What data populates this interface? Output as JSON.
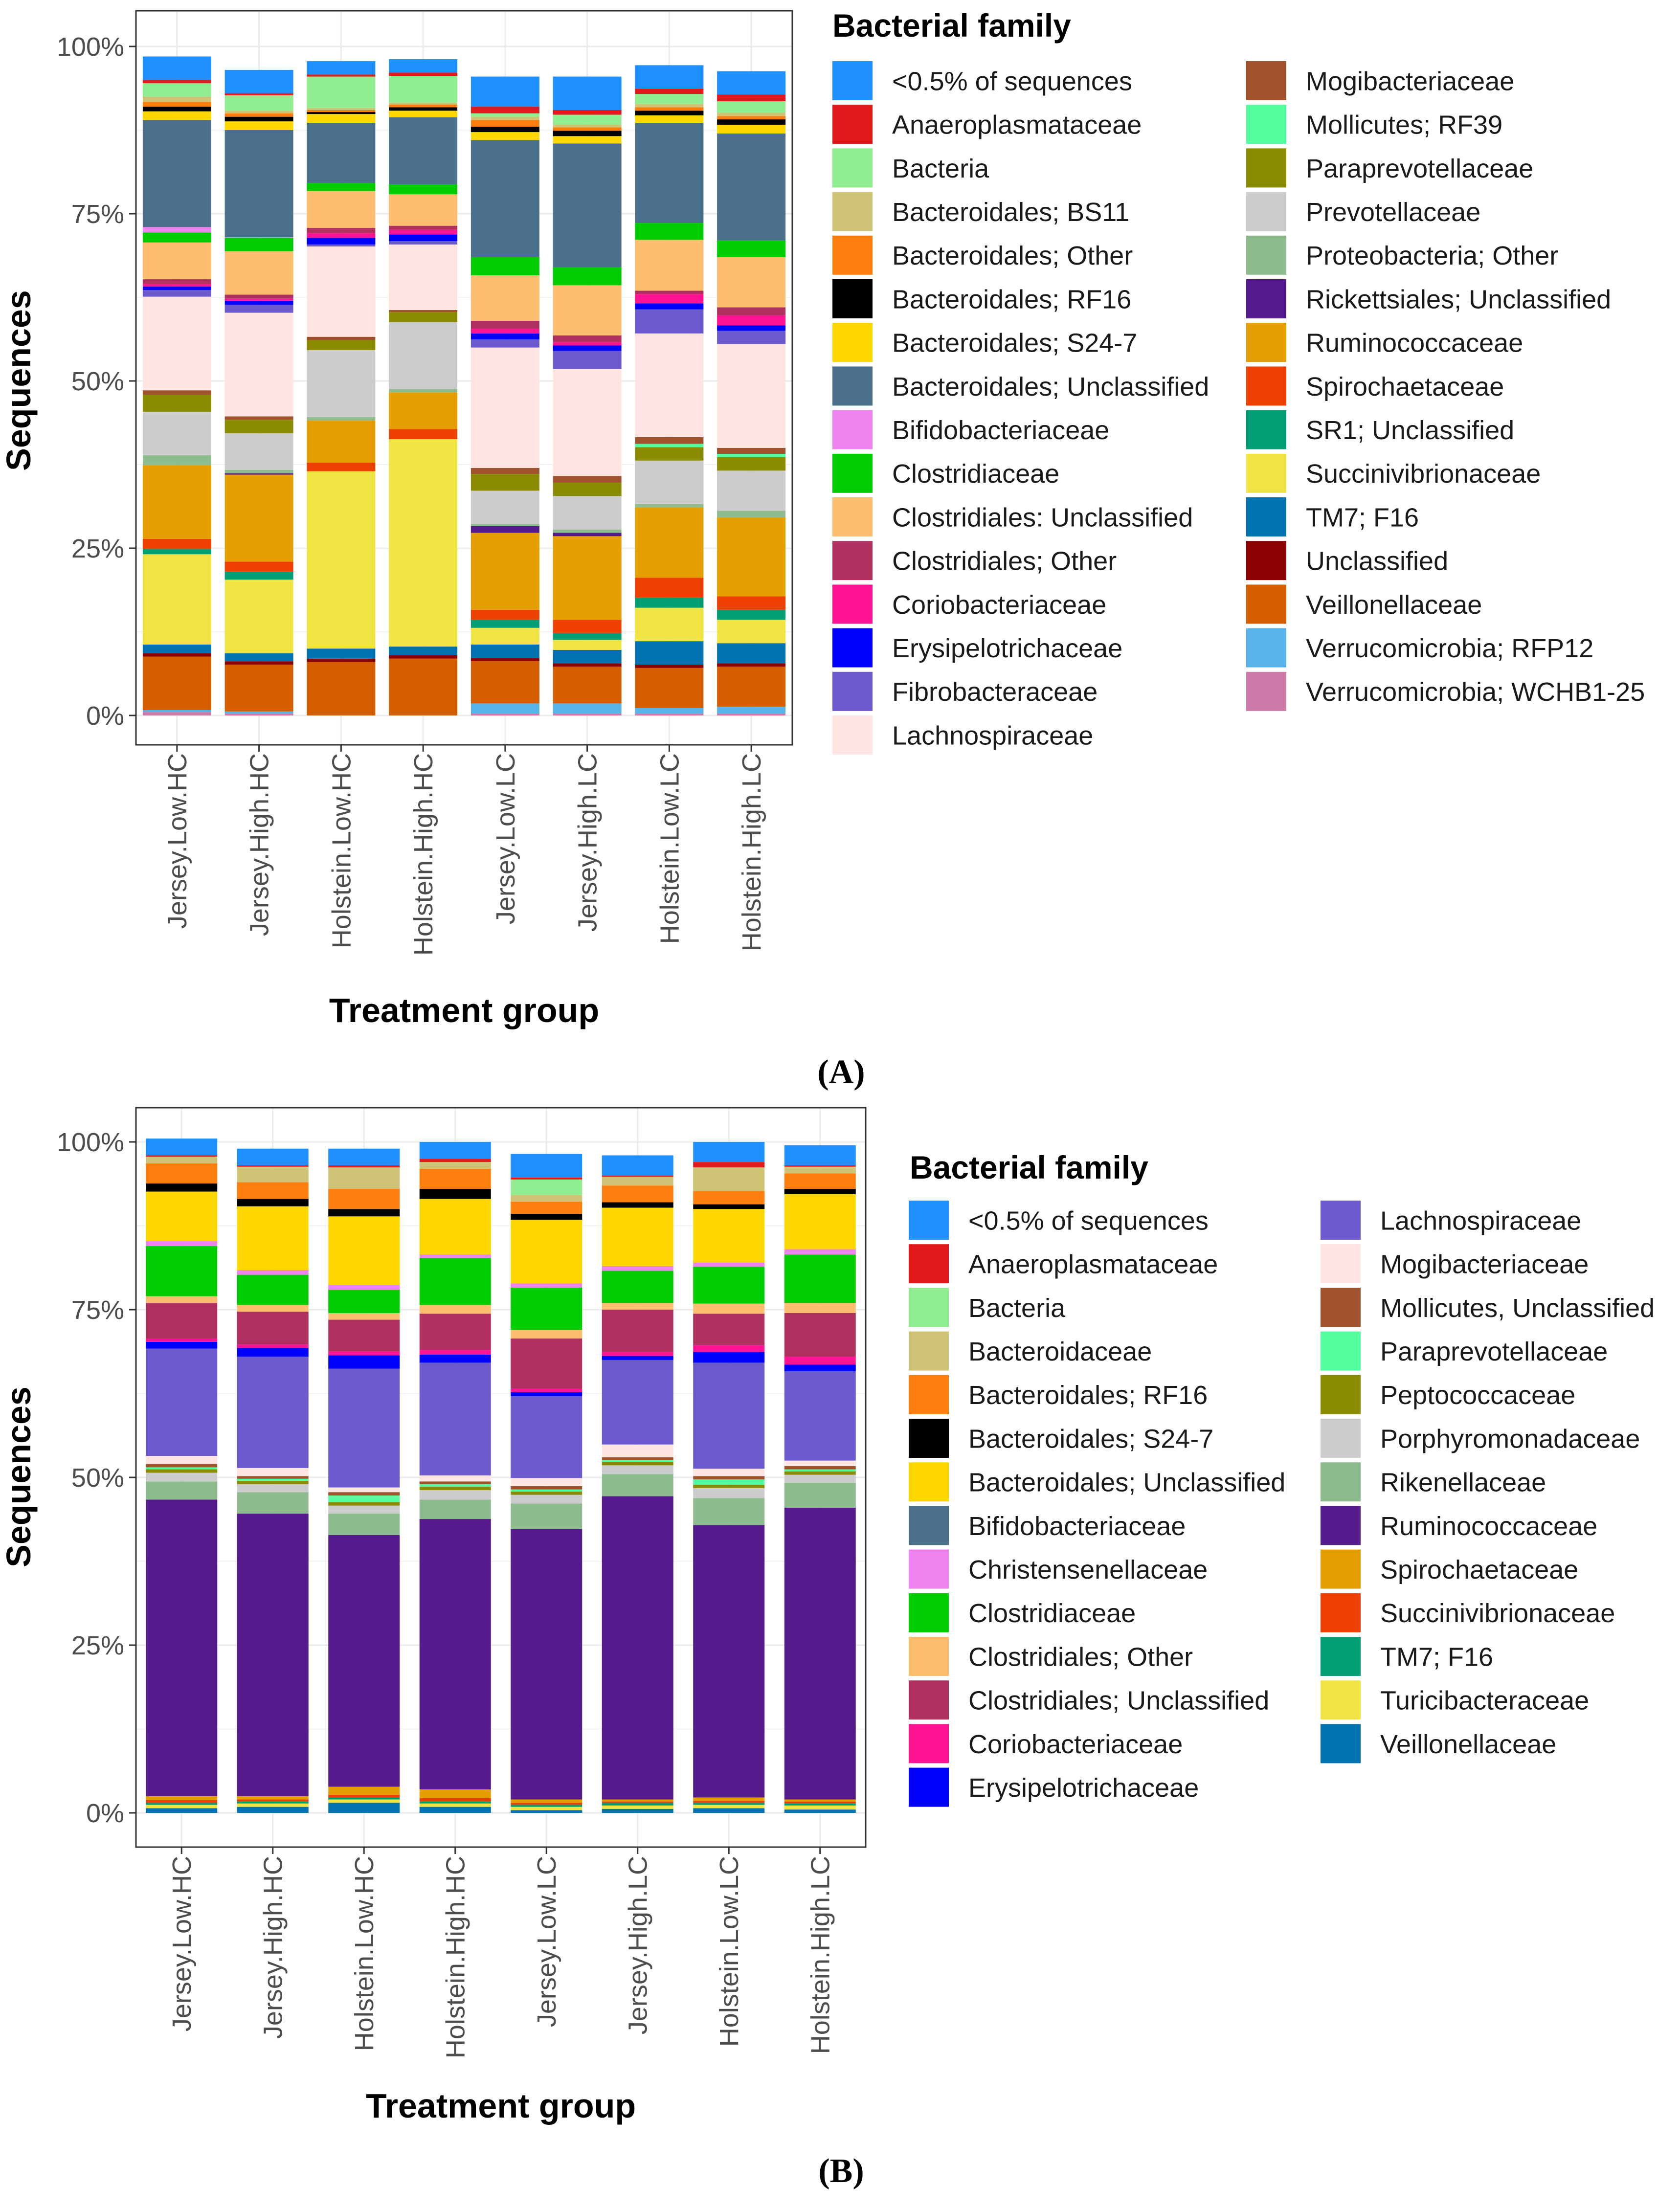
{
  "chart_data": [
    {
      "type": "bar",
      "stacked": true,
      "panel_label": "(A)",
      "xlabel": "Treatment group",
      "ylabel": "Sequences",
      "ylim": [
        0,
        100
      ],
      "ytick_labels": [
        "0%",
        "25%",
        "50%",
        "75%",
        "100%"
      ],
      "categories": [
        "Jersey.Low.HC",
        "Jersey.High.HC",
        "Holstein.Low.HC",
        "Holstein.High.HC",
        "Jersey.Low.LC",
        "Jersey.High.LC",
        "Holstein.Low.LC",
        "Holstein.High.LC"
      ],
      "legend_title": "Bacterial family",
      "legend_position": "right",
      "series": [
        {
          "name": "<0.5% of sequences",
          "color": "#1f90ff",
          "values": [
            3.5,
            3.5,
            2.0,
            2.0,
            4.5,
            5.0,
            3.5,
            3.5
          ]
        },
        {
          "name": "Anaeroplasmataceae",
          "color": "#e31a1c",
          "values": [
            0.5,
            0.3,
            0.3,
            0.5,
            1.0,
            0.7,
            0.8,
            1.0
          ]
        },
        {
          "name": "Bacteria",
          "color": "#90ee90",
          "values": [
            2.0,
            2.3,
            4.7,
            4.0,
            0.5,
            1.5,
            1.5,
            1.7
          ]
        },
        {
          "name": "Bacteroidales; BS11",
          "color": "#cfc376",
          "values": [
            0.8,
            0.4,
            0.3,
            0.3,
            0.5,
            0.4,
            0.5,
            0.5
          ]
        },
        {
          "name": "Bacteroidales; Other",
          "color": "#ff7f0e",
          "values": [
            0.7,
            0.5,
            0.3,
            0.4,
            1.0,
            0.5,
            0.5,
            0.5
          ]
        },
        {
          "name": "Bacteroidales; RF16",
          "color": "#000000",
          "values": [
            0.7,
            0.7,
            0.3,
            0.5,
            0.8,
            0.8,
            0.7,
            0.8
          ]
        },
        {
          "name": "Bacteroidales; S24-7",
          "color": "#ffd700",
          "values": [
            1.3,
            1.3,
            1.3,
            1.0,
            1.2,
            1.1,
            1.1,
            1.3
          ]
        },
        {
          "name": "Bacteroidales; Unclassified",
          "color": "#4a708b",
          "values": [
            16.0,
            16.0,
            9.0,
            10.0,
            17.5,
            18.5,
            15.0,
            16.0
          ]
        },
        {
          "name": "Bifidobacteriaceae",
          "color": "#ee82ee",
          "values": [
            0.8,
            0.1,
            0.0,
            0.0,
            0.0,
            0.0,
            0.0,
            0.0
          ]
        },
        {
          "name": "Clostridiaceae",
          "color": "#00cd00",
          "values": [
            1.5,
            2.0,
            1.2,
            1.5,
            2.7,
            2.7,
            2.5,
            2.5
          ]
        },
        {
          "name": "Clostridiales: Unclassified",
          "color": "#fdbf6f",
          "values": [
            5.5,
            6.5,
            5.5,
            4.7,
            6.8,
            7.5,
            7.6,
            7.5
          ]
        },
        {
          "name": "Clostridiales; Other",
          "color": "#b03060",
          "values": [
            0.7,
            0.6,
            0.8,
            0.6,
            1.2,
            1.0,
            0.5,
            1.2
          ]
        },
        {
          "name": "Coriobacteriaceae",
          "color": "#ff1493",
          "values": [
            0.4,
            0.3,
            0.7,
            0.7,
            0.7,
            0.5,
            1.4,
            1.5
          ]
        },
        {
          "name": "Erysipelotrichaceae",
          "color": "#0000ff",
          "values": [
            0.5,
            0.6,
            1.0,
            1.0,
            0.9,
            0.8,
            0.9,
            0.8
          ]
        },
        {
          "name": "Fibrobacteraceae",
          "color": "#6a5acd",
          "values": [
            1.0,
            1.2,
            0.3,
            0.5,
            1.2,
            2.7,
            3.6,
            2.0
          ]
        },
        {
          "name": "Lachnospiraceae",
          "color": "#ffe4e1",
          "values": [
            14.0,
            15.5,
            13.5,
            9.8,
            18.0,
            16.0,
            15.5,
            15.5
          ]
        },
        {
          "name": "Mogibacteriaceae",
          "color": "#a0522d",
          "values": [
            0.7,
            0.5,
            0.5,
            0.3,
            0.9,
            1.0,
            1.0,
            0.9
          ]
        },
        {
          "name": "Mollicutes; RF39",
          "color": "#54ff9f",
          "values": [
            0.0,
            0.0,
            0.0,
            0.0,
            0.0,
            0.0,
            0.5,
            0.5
          ]
        },
        {
          "name": "Paraprevotellaceae",
          "color": "#8b8b00",
          "values": [
            2.5,
            2.0,
            1.5,
            1.5,
            2.5,
            2.0,
            2.0,
            2.0
          ]
        },
        {
          "name": "Prevotellaceae",
          "color": "#cccccc",
          "values": [
            6.5,
            5.5,
            10.0,
            10.0,
            5.0,
            5.0,
            6.5,
            6.0
          ]
        },
        {
          "name": "Proteobacteria; Other",
          "color": "#8fbc8f",
          "values": [
            1.5,
            0.5,
            0.5,
            0.5,
            0.3,
            0.5,
            0.5,
            1.0
          ]
        },
        {
          "name": "Rickettsiales; Unclassified",
          "color": "#551a8b",
          "values": [
            0.0,
            0.2,
            0.0,
            0.0,
            1.0,
            0.5,
            0.0,
            0.0
          ]
        },
        {
          "name": "Ruminococcaceae",
          "color": "#e69f00",
          "values": [
            11.0,
            13.0,
            6.3,
            5.5,
            11.5,
            12.5,
            10.5,
            11.8
          ]
        },
        {
          "name": "Spirochaetaceae",
          "color": "#ee4000",
          "values": [
            1.5,
            1.5,
            1.3,
            1.5,
            1.5,
            2.0,
            3.0,
            2.0
          ]
        },
        {
          "name": "SR1; Unclassified",
          "color": "#009e73",
          "values": [
            0.8,
            1.2,
            0.0,
            0.0,
            1.2,
            1.0,
            1.5,
            1.5
          ]
        },
        {
          "name": "Succinivibrionaceae",
          "color": "#f0e442",
          "values": [
            13.5,
            11.0,
            26.5,
            31.0,
            2.5,
            1.5,
            5.0,
            3.5
          ]
        },
        {
          "name": "TM7; F16",
          "color": "#0072b2",
          "values": [
            1.3,
            1.2,
            1.5,
            1.3,
            2.0,
            2.0,
            3.5,
            3.0
          ]
        },
        {
          "name": "Unclassified",
          "color": "#8b0000",
          "values": [
            0.5,
            0.5,
            0.5,
            0.5,
            0.5,
            0.5,
            0.5,
            0.5
          ]
        },
        {
          "name": "Veillonellaceae",
          "color": "#d55e00",
          "values": [
            8.0,
            7.0,
            8.0,
            8.5,
            6.3,
            5.5,
            6.0,
            6.0
          ]
        },
        {
          "name": "Verrucomicrobia; RFP12",
          "color": "#56b4e9",
          "values": [
            0.3,
            0.3,
            0.0,
            0.0,
            1.5,
            1.5,
            0.8,
            1.0
          ]
        },
        {
          "name": "Verrucomicrobia; WCHB1-25",
          "color": "#cc79a7",
          "values": [
            0.5,
            0.3,
            0.0,
            0.0,
            0.3,
            0.3,
            0.3,
            0.3
          ]
        }
      ]
    },
    {
      "type": "bar",
      "stacked": true,
      "panel_label": "(B)",
      "xlabel": "Treatment group",
      "ylabel": "Sequences",
      "ylim": [
        0,
        100
      ],
      "ytick_labels": [
        "0%",
        "25%",
        "50%",
        "75%",
        "100%"
      ],
      "categories": [
        "Jersey.Low.HC",
        "Jersey.High.HC",
        "Holstein.Low.HC",
        "Holstein.High.HC",
        "Jersey.Low.LC",
        "Jersey.High.LC",
        "Holstein.Low.LC",
        "Holstein.High.LC"
      ],
      "legend_title": "Bacterial family",
      "legend_position": "right",
      "series": [
        {
          "name": "<0.5% of sequences",
          "color": "#1f90ff",
          "values": [
            2.5,
            2.5,
            2.5,
            2.5,
            3.5,
            3.0,
            3.0,
            3.0
          ]
        },
        {
          "name": "Anaeroplasmataceae",
          "color": "#e31a1c",
          "values": [
            0.2,
            0.2,
            0.3,
            0.5,
            0.3,
            0.2,
            0.8,
            0.2
          ]
        },
        {
          "name": "Bacteria",
          "color": "#90ee90",
          "values": [
            0.0,
            0.0,
            0.0,
            0.0,
            2.3,
            0.0,
            0.0,
            0.0
          ]
        },
        {
          "name": "Bacteroidaceae",
          "color": "#cfc376",
          "values": [
            1.0,
            2.3,
            3.2,
            1.0,
            1.0,
            1.3,
            3.5,
            1.0
          ]
        },
        {
          "name": "Bacteroidales; RF16",
          "color": "#ff7f0e",
          "values": [
            3.0,
            2.5,
            3.0,
            3.0,
            1.8,
            2.5,
            2.0,
            2.3
          ]
        },
        {
          "name": "Bacteroidales; S24-7",
          "color": "#000000",
          "values": [
            1.2,
            1.1,
            1.1,
            1.5,
            0.9,
            0.8,
            0.7,
            0.8
          ]
        },
        {
          "name": "Bacteroidales; Unclassified",
          "color": "#ffd700",
          "values": [
            7.4,
            9.5,
            10.2,
            8.3,
            9.5,
            8.7,
            8.0,
            8.2
          ]
        },
        {
          "name": "Bifidobacteriaceae",
          "color": "#4a708b",
          "values": [
            0.0,
            0.0,
            0.0,
            0.0,
            0.0,
            0.0,
            0.0,
            0.0
          ]
        },
        {
          "name": "Christensenellaceae",
          "color": "#ee82ee",
          "values": [
            0.7,
            0.7,
            0.7,
            0.5,
            0.6,
            0.7,
            0.6,
            0.8
          ]
        },
        {
          "name": "Clostridiaceae",
          "color": "#00cd00",
          "values": [
            7.5,
            4.5,
            3.5,
            7.0,
            6.3,
            4.8,
            5.5,
            7.2
          ]
        },
        {
          "name": "Clostridiales; Other",
          "color": "#fdbf6f",
          "values": [
            1.0,
            1.0,
            1.0,
            1.3,
            1.3,
            1.0,
            1.5,
            1.5
          ]
        },
        {
          "name": "Clostridiales; Unclassified",
          "color": "#b03060",
          "values": [
            5.3,
            4.9,
            4.7,
            5.4,
            7.5,
            6.3,
            4.7,
            6.5
          ]
        },
        {
          "name": "Coriobacteriaceae",
          "color": "#ff1493",
          "values": [
            0.5,
            0.5,
            0.6,
            0.7,
            0.5,
            0.6,
            1.0,
            1.2
          ]
        },
        {
          "name": "Erysipelotrichaceae",
          "color": "#0000ff",
          "values": [
            1.0,
            1.3,
            2.0,
            1.2,
            0.6,
            0.6,
            1.6,
            1.0
          ]
        },
        {
          "name": "Lachnospiraceae",
          "color": "#6a5acd",
          "values": [
            16.0,
            16.6,
            17.7,
            16.8,
            12.2,
            12.6,
            15.8,
            13.3
          ]
        },
        {
          "name": "Mogibacteriaceae",
          "color": "#ffe4e1",
          "values": [
            1.2,
            1.2,
            0.7,
            0.9,
            1.2,
            1.9,
            1.1,
            0.8
          ]
        },
        {
          "name": "Mollicutes, Unclassified",
          "color": "#a0522d",
          "values": [
            0.5,
            0.4,
            0.5,
            0.4,
            0.5,
            0.4,
            0.5,
            0.5
          ]
        },
        {
          "name": "Paraprevotellaceae",
          "color": "#54ff9f",
          "values": [
            0.3,
            0.3,
            1.0,
            0.4,
            0.3,
            0.3,
            0.8,
            0.3
          ]
        },
        {
          "name": "Peptococcaceae",
          "color": "#8b8b00",
          "values": [
            0.5,
            0.5,
            0.5,
            0.5,
            0.5,
            0.5,
            0.5,
            0.5
          ]
        },
        {
          "name": "Porphyromonadaceae",
          "color": "#cccccc",
          "values": [
            1.3,
            1.2,
            1.2,
            1.4,
            1.3,
            1.3,
            1.5,
            1.2
          ]
        },
        {
          "name": "Rikenellaceae",
          "color": "#8fbc8f",
          "values": [
            2.7,
            3.2,
            3.2,
            2.9,
            3.8,
            3.3,
            4.0,
            3.7
          ]
        },
        {
          "name": "Ruminococcaceae",
          "color": "#551a8b",
          "values": [
            44.2,
            42.1,
            37.5,
            40.3,
            40.3,
            45.2,
            40.6,
            43.5
          ]
        },
        {
          "name": "Spirochaetaceae",
          "color": "#e69f00",
          "values": [
            0.6,
            0.5,
            1.2,
            1.3,
            0.5,
            0.3,
            0.5,
            0.3
          ]
        },
        {
          "name": "Succinivibrionaceae",
          "color": "#ee4000",
          "values": [
            0.4,
            0.3,
            0.4,
            0.5,
            0.3,
            0.2,
            0.3,
            0.3
          ]
        },
        {
          "name": "TM7; F16",
          "color": "#009e73",
          "values": [
            0.3,
            0.3,
            0.3,
            0.3,
            0.3,
            0.4,
            0.3,
            0.3
          ]
        },
        {
          "name": "Turicibacteraceae",
          "color": "#f0e442",
          "values": [
            0.5,
            0.5,
            0.5,
            0.5,
            0.5,
            0.5,
            0.5,
            0.6
          ]
        },
        {
          "name": "Veillonellaceae",
          "color": "#0072b2",
          "values": [
            0.7,
            0.9,
            1.5,
            0.9,
            0.4,
            0.6,
            0.7,
            0.5
          ]
        }
      ]
    }
  ]
}
